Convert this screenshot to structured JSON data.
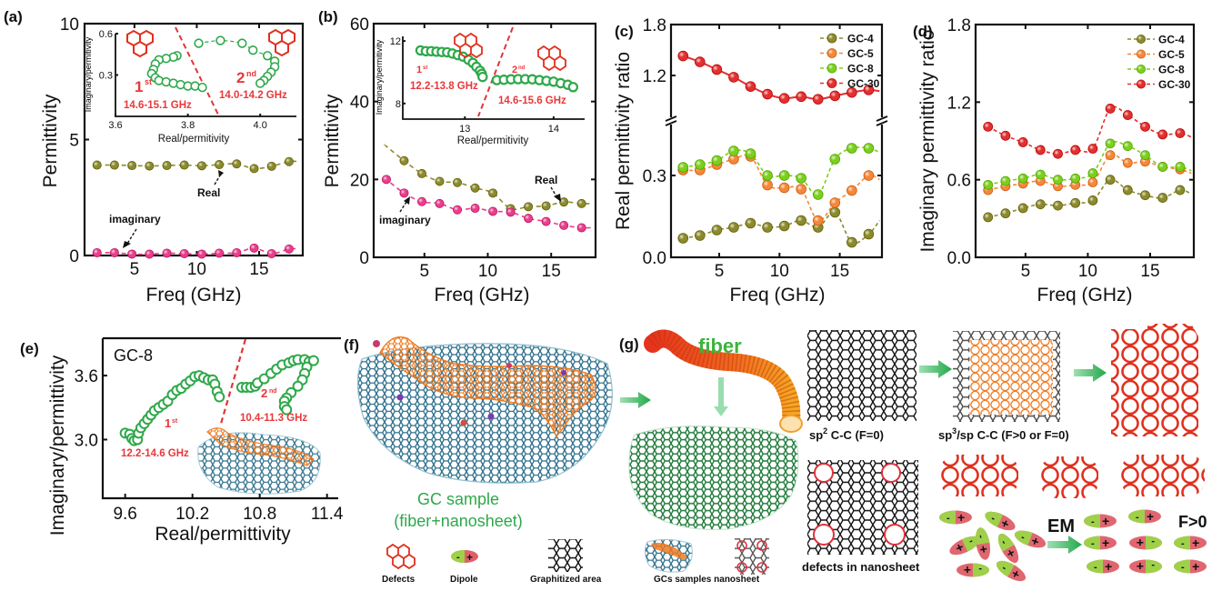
{
  "figure": {
    "panel_labels": [
      "(a)",
      "(b)",
      "(c)",
      "(d)",
      "(e)",
      "(f)",
      "(g)"
    ],
    "colors": {
      "gc4": "#8b8a2e",
      "gc5": "#f5873a",
      "gc8": "#7ccf1e",
      "gc30": "#e23030",
      "imaginary": "#e83e8c",
      "real": "#8b8a2e",
      "cole_cole": "#2ea84a",
      "divider": "#e23535",
      "annotation_red": "#e8383a",
      "fiber_text": "#3cb43c",
      "gc_sample_text": "#2ea84a",
      "arrow_green": "#2db352"
    }
  },
  "chart_data": [
    {
      "id": "a",
      "type": "line",
      "title": "",
      "xlabel": "Freq (GHz)",
      "ylabel": "Permittivity",
      "xlim": [
        1,
        18.5
      ],
      "ylim": [
        0,
        10
      ],
      "xticks": [
        5,
        10,
        15
      ],
      "yticks": [
        0,
        5,
        10
      ],
      "x": [
        2,
        3.4,
        4.8,
        6.2,
        7.6,
        9.0,
        10.4,
        11.8,
        13.2,
        14.6,
        16.0,
        17.4
      ],
      "series": [
        {
          "name": "Real",
          "values": [
            3.9,
            3.9,
            3.88,
            3.86,
            3.88,
            3.9,
            3.87,
            3.92,
            3.95,
            3.75,
            3.85,
            4.05
          ]
        },
        {
          "name": "imaginary",
          "values": [
            0.12,
            0.12,
            0.06,
            0.06,
            0.1,
            0.08,
            0.06,
            0.1,
            0.12,
            0.32,
            0.08,
            0.28
          ]
        }
      ],
      "annotations": [
        "Real",
        "imaginary"
      ],
      "inset": {
        "xlabel": "Real/permitivity",
        "ylabel": "Imaginary/permitivity",
        "xlim": [
          3.6,
          4.1
        ],
        "ylim": [
          0.0,
          0.6
        ],
        "xticks": [
          "3.6",
          "3.8",
          "4.0"
        ],
        "yticks": [
          "0.3",
          "0.6"
        ],
        "regions": [
          {
            "order": "1",
            "sup": "st",
            "range": "14.6-15.1 GHz"
          },
          {
            "order": "2",
            "sup": "nd",
            "range": "14.0-14.2 GHz"
          }
        ],
        "points_1st": [
          [
            3.77,
            0.44
          ],
          [
            3.76,
            0.43
          ],
          [
            3.74,
            0.42
          ],
          [
            3.72,
            0.41
          ],
          [
            3.71,
            0.38
          ],
          [
            3.705,
            0.34
          ],
          [
            3.7,
            0.31
          ],
          [
            3.71,
            0.28
          ],
          [
            3.72,
            0.26
          ],
          [
            3.74,
            0.25
          ],
          [
            3.76,
            0.24
          ],
          [
            3.78,
            0.23
          ],
          [
            3.8,
            0.22
          ],
          [
            3.82,
            0.22
          ],
          [
            3.84,
            0.21
          ]
        ],
        "points_2nd": [
          [
            3.83,
            0.53
          ],
          [
            3.89,
            0.55
          ],
          [
            3.95,
            0.53
          ],
          [
            3.98,
            0.48
          ],
          [
            4.02,
            0.44
          ],
          [
            4.04,
            0.4
          ],
          [
            4.04,
            0.36
          ],
          [
            4.03,
            0.32
          ],
          [
            4.02,
            0.29
          ],
          [
            4.01,
            0.26
          ],
          [
            4.0,
            0.24
          ]
        ]
      }
    },
    {
      "id": "b",
      "type": "line",
      "title": "",
      "xlabel": "Freq (GHz)",
      "ylabel": "Permittivity",
      "xlim": [
        1,
        18.5
      ],
      "ylim": [
        0,
        60
      ],
      "xticks": [
        5,
        10,
        15
      ],
      "yticks": [
        0,
        20,
        40,
        60
      ],
      "x": [
        2,
        3.4,
        4.8,
        6.2,
        7.6,
        9.0,
        10.4,
        11.8,
        13.2,
        14.6,
        16.0,
        17.4
      ],
      "series": [
        {
          "name": "Real",
          "values": [
            28.5,
            24.8,
            21.5,
            19.5,
            19.2,
            17.8,
            16.5,
            12.5,
            13.0,
            13.2,
            14.2,
            13.8
          ]
        },
        {
          "name": "imaginary",
          "values": [
            20.0,
            16.5,
            14.3,
            13.8,
            12.2,
            12.6,
            11.8,
            11.6,
            10.0,
            9.2,
            8.2,
            7.6
          ]
        }
      ],
      "annotations": [
        "Real",
        "imaginary"
      ],
      "inset": {
        "xlabel": "Real/permitivity",
        "ylabel": "Imaginary/permitivity",
        "xlim": [
          12.3,
          14.35
        ],
        "ylim": [
          7,
          12.3
        ],
        "xticks": [
          "13",
          "14"
        ],
        "yticks": [
          "8",
          "12"
        ],
        "regions": [
          {
            "order": "1",
            "sup": "st",
            "range": "12.2-13.8 GHz"
          },
          {
            "order": "2",
            "sup": "nd",
            "range": "14.6-15.6 GHz"
          }
        ],
        "points_1st": [
          [
            12.5,
            11.4
          ],
          [
            12.56,
            11.35
          ],
          [
            12.62,
            11.35
          ],
          [
            12.68,
            11.32
          ],
          [
            12.74,
            11.3
          ],
          [
            12.8,
            11.28
          ],
          [
            12.86,
            11.2
          ],
          [
            12.92,
            11.1
          ],
          [
            12.98,
            11.0
          ],
          [
            13.04,
            10.8
          ],
          [
            13.09,
            10.6
          ],
          [
            13.13,
            10.35
          ],
          [
            13.17,
            10.1
          ],
          [
            13.19,
            9.9
          ],
          [
            13.2,
            9.7
          ]
        ],
        "points_2nd": [
          [
            13.36,
            9.5
          ],
          [
            13.44,
            9.52
          ],
          [
            13.52,
            9.55
          ],
          [
            13.6,
            9.56
          ],
          [
            13.68,
            9.56
          ],
          [
            13.76,
            9.55
          ],
          [
            13.84,
            9.5
          ],
          [
            13.92,
            9.45
          ],
          [
            14.0,
            9.4
          ],
          [
            14.08,
            9.3
          ],
          [
            14.16,
            9.2
          ],
          [
            14.22,
            9.05
          ]
        ]
      }
    },
    {
      "id": "c",
      "type": "line",
      "title": "",
      "xlabel": "Freq (GHz)",
      "ylabel": "Real permittivity ratio",
      "xlim": [
        1,
        18.5
      ],
      "yticks": [
        "0.0",
        "0.3",
        "1.2",
        "1.8"
      ],
      "axis_break": true,
      "lower_ylim": [
        0.0,
        0.6
      ],
      "upper_ylim": [
        0.9,
        1.8
      ],
      "legend": [
        "GC-4",
        "GC-5",
        "GC-8",
        "GC-30"
      ],
      "legend_position": "top-right",
      "xticks": [
        5,
        10,
        15
      ],
      "x": [
        2,
        3.4,
        4.8,
        6.2,
        7.6,
        9.0,
        10.4,
        11.8,
        13.2,
        14.6,
        16.0,
        17.4
      ],
      "series": [
        {
          "name": "GC-4",
          "values": [
            0.07,
            0.08,
            0.1,
            0.11,
            0.125,
            0.11,
            0.115,
            0.135,
            0.11,
            0.165,
            0.055,
            0.085
          ]
        },
        {
          "name": "GC-5",
          "values": [
            0.32,
            0.32,
            0.34,
            0.36,
            0.37,
            0.265,
            0.255,
            0.25,
            0.135,
            0.2,
            0.245,
            0.3
          ]
        },
        {
          "name": "GC-8",
          "values": [
            0.33,
            0.34,
            0.355,
            0.39,
            0.38,
            0.3,
            0.3,
            0.29,
            0.23,
            0.36,
            0.4,
            0.4
          ]
        },
        {
          "name": "GC-30",
          "values": [
            1.43,
            1.36,
            1.27,
            1.18,
            1.07,
            0.98,
            0.93,
            0.95,
            0.92,
            0.96,
            1.0,
            1.03
          ]
        }
      ]
    },
    {
      "id": "d",
      "type": "line",
      "title": "",
      "xlabel": "Freq (GHz)",
      "ylabel": "Imaginary permittivity ratio",
      "xlim": [
        1,
        18.5
      ],
      "ylim": [
        0.0,
        1.8
      ],
      "xticks": [
        5,
        10,
        15
      ],
      "yticks": [
        "0.0",
        "0.6",
        "1.2",
        "1.8"
      ],
      "legend": [
        "GC-4",
        "GC-5",
        "GC-8",
        "GC-30"
      ],
      "legend_position": "top-right",
      "x": [
        2,
        3.4,
        4.8,
        6.2,
        7.6,
        9.0,
        10.4,
        11.8,
        13.2,
        14.6,
        16.0,
        17.4
      ],
      "series": [
        {
          "name": "GC-4",
          "values": [
            0.31,
            0.34,
            0.38,
            0.41,
            0.4,
            0.42,
            0.44,
            0.6,
            0.52,
            0.48,
            0.46,
            0.52
          ]
        },
        {
          "name": "GC-5",
          "values": [
            0.52,
            0.55,
            0.57,
            0.59,
            0.55,
            0.56,
            0.58,
            0.79,
            0.73,
            0.74,
            0.7,
            0.68
          ]
        },
        {
          "name": "GC-8",
          "values": [
            0.56,
            0.59,
            0.61,
            0.64,
            0.6,
            0.61,
            0.65,
            0.88,
            0.86,
            0.79,
            0.7,
            0.7
          ]
        },
        {
          "name": "GC-30",
          "values": [
            1.01,
            0.94,
            0.89,
            0.83,
            0.8,
            0.83,
            0.84,
            1.15,
            1.1,
            1.01,
            0.95,
            0.96
          ]
        }
      ]
    },
    {
      "id": "e",
      "type": "scatter",
      "title": "GC-8",
      "xlabel": "Real/permittivity",
      "ylabel": "Imaginary/permittivity",
      "xlim": [
        9.4,
        11.5
      ],
      "ylim": [
        2.45,
        3.95
      ],
      "xticks": [
        "9.6",
        "10.2",
        "10.8",
        "11.4"
      ],
      "yticks": [
        "3.0",
        "3.6"
      ],
      "regions": [
        {
          "order": "1",
          "sup": "st",
          "range": "12.2-14.6 GHz"
        },
        {
          "order": "2",
          "sup": "nd",
          "range": "10.4-11.3 GHz"
        }
      ],
      "points_1st": [
        [
          9.6,
          3.06
        ],
        [
          9.64,
          3.05
        ],
        [
          9.66,
          3.01
        ],
        [
          9.68,
          2.99
        ],
        [
          9.71,
          3.0
        ],
        [
          9.72,
          3.06
        ],
        [
          9.74,
          3.11
        ],
        [
          9.77,
          3.15
        ],
        [
          9.8,
          3.19
        ],
        [
          9.83,
          3.23
        ],
        [
          9.86,
          3.27
        ],
        [
          9.9,
          3.3
        ],
        [
          9.94,
          3.33
        ],
        [
          9.98,
          3.36
        ],
        [
          10.02,
          3.42
        ],
        [
          10.06,
          3.46
        ],
        [
          10.1,
          3.48
        ],
        [
          10.14,
          3.52
        ],
        [
          10.18,
          3.55
        ],
        [
          10.22,
          3.59
        ],
        [
          10.26,
          3.6
        ],
        [
          10.3,
          3.58
        ],
        [
          10.34,
          3.56
        ],
        [
          10.38,
          3.56
        ],
        [
          10.4,
          3.52
        ],
        [
          10.42,
          3.45
        ],
        [
          10.44,
          3.4
        ]
      ],
      "points_2nd": [
        [
          10.64,
          3.49
        ],
        [
          10.68,
          3.49
        ],
        [
          10.72,
          3.49
        ],
        [
          10.76,
          3.5
        ],
        [
          10.78,
          3.53
        ],
        [
          10.84,
          3.57
        ],
        [
          10.9,
          3.62
        ],
        [
          10.95,
          3.66
        ],
        [
          11.0,
          3.7
        ],
        [
          11.06,
          3.72
        ],
        [
          11.1,
          3.74
        ],
        [
          11.14,
          3.75
        ],
        [
          11.2,
          3.75
        ],
        [
          11.24,
          3.73
        ],
        [
          11.28,
          3.74
        ],
        [
          11.22,
          3.68
        ],
        [
          11.2,
          3.62
        ],
        [
          11.18,
          3.56
        ],
        [
          11.14,
          3.5
        ],
        [
          11.08,
          3.44
        ],
        [
          11.04,
          3.39
        ],
        [
          11.02,
          3.36
        ],
        [
          11.02,
          3.31
        ],
        [
          11.04,
          3.28
        ]
      ]
    }
  ],
  "panel_f": {
    "sample_label_line1": "GC sample",
    "sample_label_line2": "(fiber+nanosheet)",
    "legend_items": [
      "Defects",
      "Dipole",
      "Graphitized area",
      "GCs samples nanosheet"
    ]
  },
  "panel_g": {
    "fiber_label": "fiber",
    "sp2_label_prefix": "sp",
    "sp2_label_sup": "2",
    "sp2_label_suffix": " C-C (F=0)",
    "sp3_label_prefix": "sp",
    "sp3_label_sup": "3",
    "sp3_label_suffix": "/sp C-C (F>0 or F=0)",
    "defects_label": "defects in nanosheet",
    "em_label": "EM",
    "f_label": "F>0",
    "dipole_minus": "-",
    "dipole_plus": "+"
  }
}
